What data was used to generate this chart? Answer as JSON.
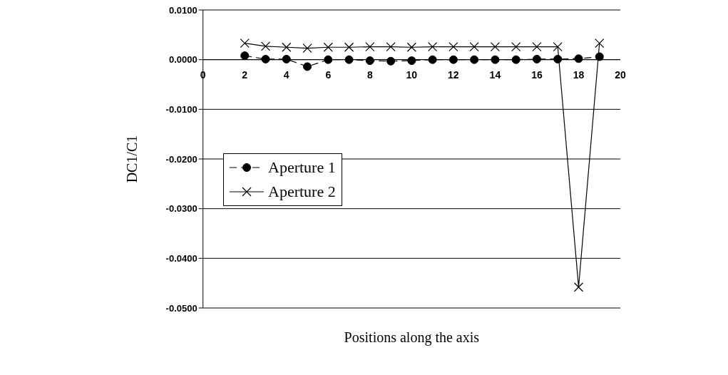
{
  "chart_data": {
    "type": "line",
    "xlabel": "Positions along the axis",
    "ylabel": "DC1/C1",
    "x": [
      2,
      3,
      4,
      5,
      6,
      7,
      8,
      9,
      10,
      11,
      12,
      13,
      14,
      15,
      16,
      17,
      18,
      19
    ],
    "series": [
      {
        "name": "Aperture 1",
        "color": "#000000",
        "marker": "circle",
        "line_style": "dashed",
        "values": [
          0.0008,
          0.0001,
          0.0001,
          -0.0014,
          0.0,
          0.0,
          -0.0002,
          -0.0003,
          -0.0002,
          0.0,
          0.0,
          0.0,
          0.0,
          0.0,
          0.0001,
          0.0001,
          0.0002,
          0.0006
        ]
      },
      {
        "name": "Aperture 2",
        "color": "#000000",
        "marker": "cross",
        "line_style": "solid",
        "values": [
          0.0033,
          0.0027,
          0.0025,
          0.0023,
          0.0025,
          0.0025,
          0.0026,
          0.0026,
          0.0025,
          0.0026,
          0.0026,
          0.0026,
          0.0026,
          0.0026,
          0.0026,
          0.0026,
          -0.0458,
          0.0033
        ]
      }
    ],
    "xlim": [
      0,
      20
    ],
    "xticks": [
      0,
      2,
      4,
      6,
      8,
      10,
      12,
      14,
      16,
      18,
      20
    ],
    "ylim": [
      -0.05,
      0.01
    ],
    "yticks": [
      {
        "value": -0.05,
        "label": "-0.0500"
      },
      {
        "value": -0.04,
        "label": "-0.0400"
      },
      {
        "value": -0.03,
        "label": "-0.0300"
      },
      {
        "value": -0.02,
        "label": "-0.0200"
      },
      {
        "value": -0.01,
        "label": "-0.0100"
      },
      {
        "value": 0,
        "label": "0.0000"
      },
      {
        "value": 0.01,
        "label": "0.0100"
      }
    ],
    "grid": "y",
    "legend": "left"
  }
}
